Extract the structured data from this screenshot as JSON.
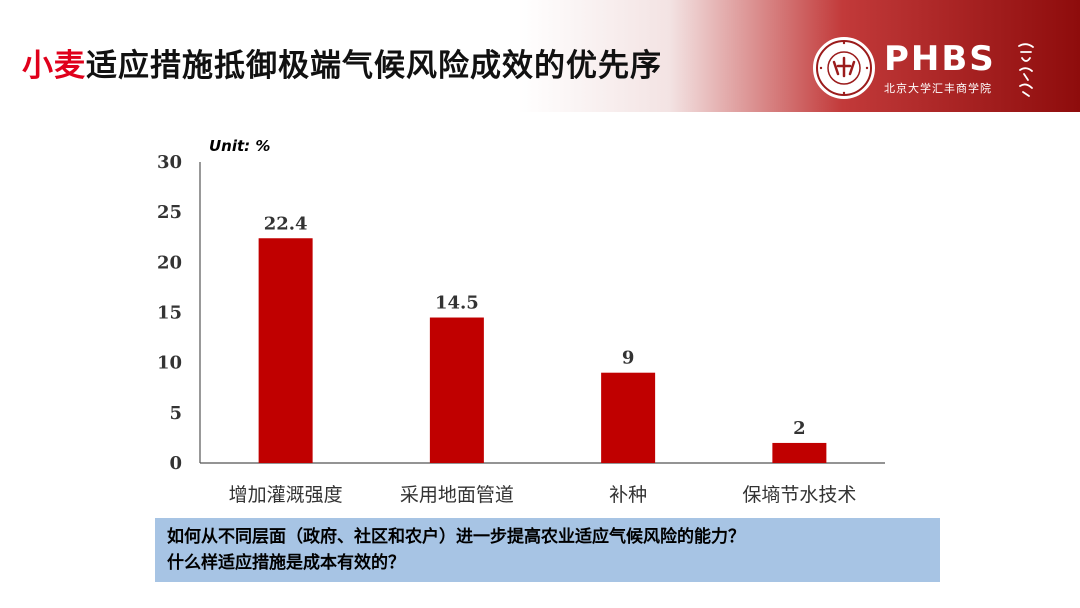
{
  "header": {
    "title_highlight": "小麦",
    "title_rest": "适应措施抵御极端气候风险成效的优先序",
    "logo": {
      "name": "PHBS",
      "subtitle": "北京大学汇丰商学院",
      "seal_text": "PEKING UNIVERSITY 1898",
      "calligraphy": "商界学林"
    },
    "colors": {
      "title_highlight": "#e0001b",
      "band_dark": "#8e0c0c"
    }
  },
  "chart_data": {
    "type": "bar",
    "unit_label": "Unit: %",
    "categories": [
      "增加灌溉强度",
      "采用地面管道",
      "补种",
      "保墒节水技术"
    ],
    "values": [
      22.4,
      14.5,
      9,
      2
    ],
    "data_labels": [
      "22.4",
      "14.5",
      "9",
      "2"
    ],
    "ylim": [
      0,
      30
    ],
    "yticks": [
      "0",
      "5",
      "10",
      "15",
      "20",
      "25",
      "30"
    ],
    "bar_color": "#c00000",
    "grid": false
  },
  "question_box": {
    "line1": "如何从不同层面（政府、社区和农户）进一步提高农业适应气候风险的能力？",
    "line2": "什么样适应措施是成本有效的？",
    "background": "#a7c4e4"
  }
}
